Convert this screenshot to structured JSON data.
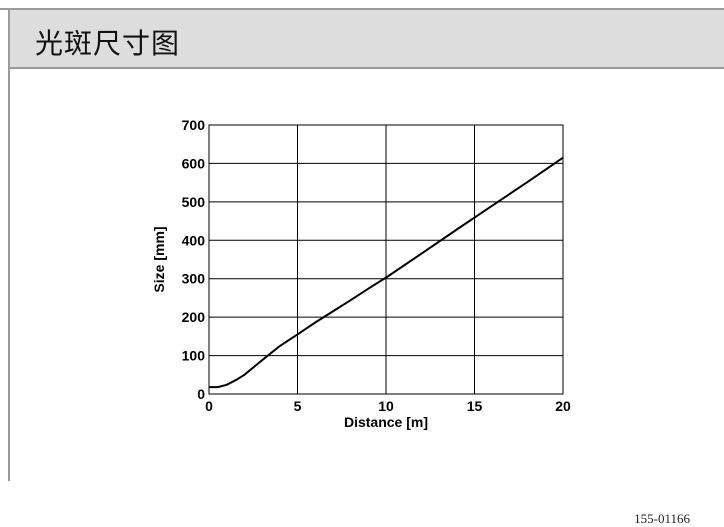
{
  "header": {
    "title": "光斑尺寸图"
  },
  "figure": {
    "code": "155-01166"
  },
  "chart_data": {
    "type": "line",
    "xlabel": "Distance [m]",
    "ylabel": "Size [mm]",
    "xlim": [
      0,
      20
    ],
    "ylim": [
      0,
      700
    ],
    "xticks": [
      0,
      5,
      10,
      15,
      20
    ],
    "yticks": [
      0,
      100,
      200,
      300,
      400,
      500,
      600,
      700
    ],
    "grid": true,
    "series": [
      {
        "x": [
          0,
          0.5,
          1,
          1.5,
          2,
          3,
          4,
          5,
          6,
          7,
          8,
          9,
          10,
          12,
          14,
          16,
          18,
          20
        ],
        "y": [
          18,
          18,
          24,
          36,
          50,
          88,
          125,
          155,
          186,
          215,
          244,
          274,
          303,
          365,
          428,
          490,
          552,
          615
        ]
      }
    ],
    "line_color": "#000000"
  }
}
